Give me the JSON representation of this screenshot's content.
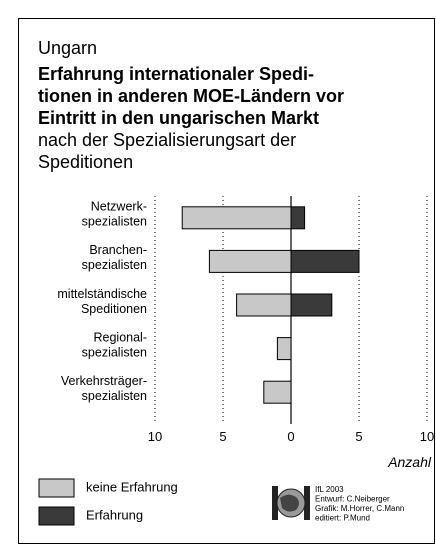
{
  "chart_data": {
    "type": "bar",
    "orientation": "horizontal",
    "supertitle": "Ungarn",
    "title": [
      "Erfahrung internationaler Spedi-",
      "tionen in anderen MOE-Ländern vor",
      "Eintritt in den ungarischen Markt"
    ],
    "subtitle": [
      "nach der Spezialisierungsart der",
      "Speditionen"
    ],
    "categories": [
      [
        "Netzwerk-",
        "spezialisten"
      ],
      [
        "Branchen-",
        "spezialisten"
      ],
      [
        "mittelständische",
        "Speditionen"
      ],
      [
        "Regional-",
        "spezialisten"
      ],
      [
        "Verkehrsträger-",
        "spezialisten"
      ]
    ],
    "series": [
      {
        "name": "keine Erfahrung",
        "color": "#c8c8c8",
        "values": [
          -8,
          -6,
          -4,
          -1,
          -2
        ]
      },
      {
        "name": "Erfahrung",
        "color": "#3a3a3a",
        "values": [
          1,
          5,
          3,
          0,
          0
        ]
      }
    ],
    "xlim": [
      -10,
      10
    ],
    "xticks": [
      {
        "value": -10,
        "label": "10"
      },
      {
        "value": -5,
        "label": "5"
      },
      0,
      5,
      10
    ],
    "xlabel": "Anzahl",
    "grid": true,
    "credits": [
      "IfL 2003",
      "Entwurf: C.Neiberger",
      "Grafik: M.Horrer, C.Mann",
      "editiert: P.Mund"
    ]
  }
}
